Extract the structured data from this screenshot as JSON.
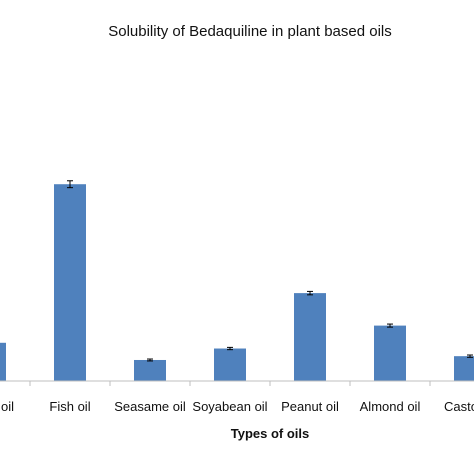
{
  "chart_data": {
    "type": "bar",
    "title": "Solubility of Bedaquiline in plant based oils",
    "xlabel": "Types of oils",
    "ylabel": "",
    "categories": [
      "Olive oil",
      "Fish oil",
      "Seasame oil",
      "Soyabean oil",
      "Peanut oil",
      "Almond oil",
      "Castor oil"
    ],
    "visible_category_text": [
      "oil",
      "Fish oil",
      "Seasame oil",
      "Soyabean oil",
      "Peanut oil",
      "Almond oil",
      "Casto"
    ],
    "values": [
      20,
      103,
      11,
      17,
      46,
      29,
      13
    ],
    "errors": [
      0,
      1.8,
      0.5,
      0.6,
      0.9,
      0.8,
      0.6
    ],
    "ylim": [
      0,
      190
    ],
    "bar_color": "#4F81BD",
    "grid": false,
    "legend": "none"
  }
}
